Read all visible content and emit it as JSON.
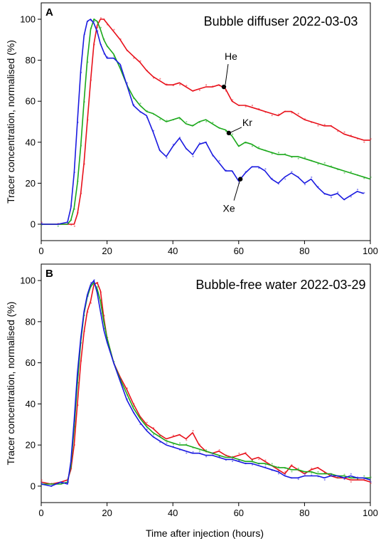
{
  "figure": {
    "xlabel": "Time after injection (hours)"
  },
  "chart_data": [
    {
      "type": "line",
      "panel_label": "A",
      "title": "Bubble diffuser 2022-03-03",
      "xlabel": "Time after injection (hours)",
      "ylabel": "Tracer concentration, normalised (%)",
      "xlim": [
        0,
        100
      ],
      "ylim": [
        -8,
        108
      ],
      "xticks": [
        0,
        20,
        40,
        60,
        80,
        100
      ],
      "yticks": [
        0,
        20,
        40,
        60,
        80,
        100
      ],
      "grid": false,
      "legend": "none",
      "series": [
        {
          "name": "He",
          "color": "#e8101a",
          "annotation_at": [
            55.5,
            67
          ],
          "x": [
            0,
            5,
            9,
            10,
            11,
            12,
            13,
            14,
            15,
            16,
            17,
            18,
            19,
            20,
            22,
            24,
            26,
            28,
            30,
            32,
            34,
            36,
            38,
            40,
            42,
            44,
            46,
            48,
            50,
            52,
            54,
            56,
            58,
            60,
            62,
            64,
            66,
            68,
            70,
            72,
            74,
            76,
            78,
            80,
            82,
            84,
            86,
            88,
            90,
            92,
            94,
            96,
            98,
            100
          ],
          "values": [
            0,
            0,
            0,
            0,
            5,
            15,
            30,
            50,
            70,
            88,
            97,
            100,
            100,
            98,
            94,
            90,
            85,
            82,
            79,
            75,
            72,
            70,
            68,
            68,
            69,
            67,
            65,
            66,
            67,
            67,
            68,
            66,
            60,
            58,
            58,
            57,
            56,
            55,
            54,
            53,
            55,
            55,
            53,
            51,
            50,
            49,
            48,
            48,
            46,
            44,
            43,
            42,
            41,
            41
          ]
        },
        {
          "name": "Kr",
          "color": "#1aa81a",
          "annotation_at": [
            57,
            44.5
          ],
          "x": [
            0,
            5,
            8,
            9,
            10,
            11,
            12,
            13,
            14,
            15,
            16,
            17,
            18,
            19,
            20,
            22,
            24,
            26,
            28,
            30,
            32,
            34,
            36,
            38,
            40,
            42,
            44,
            46,
            48,
            50,
            52,
            54,
            56,
            58,
            60,
            62,
            64,
            66,
            68,
            70,
            72,
            74,
            76,
            78,
            80,
            82,
            84,
            86,
            88,
            90,
            92,
            94,
            96,
            98,
            100
          ],
          "values": [
            0,
            0,
            0,
            2,
            8,
            20,
            38,
            60,
            80,
            95,
            100,
            99,
            95,
            90,
            87,
            83,
            76,
            68,
            62,
            58,
            55,
            54,
            52,
            50,
            51,
            52,
            49,
            48,
            50,
            51,
            49,
            47,
            46,
            43,
            38,
            40,
            39,
            37,
            36,
            35,
            34,
            34,
            33,
            33,
            32,
            31,
            30,
            29,
            28,
            27,
            26,
            25,
            24,
            23,
            22
          ]
        },
        {
          "name": "Xe",
          "color": "#1a1ae0",
          "annotation_at": [
            60.5,
            22
          ],
          "x": [
            0,
            5,
            8,
            9,
            10,
            11,
            12,
            13,
            14,
            15,
            16,
            17,
            18,
            19,
            20,
            22,
            24,
            26,
            28,
            30,
            32,
            34,
            36,
            38,
            40,
            42,
            44,
            46,
            48,
            50,
            52,
            54,
            56,
            58,
            60,
            62,
            64,
            66,
            68,
            70,
            72,
            74,
            76,
            78,
            80,
            82,
            84,
            86,
            88,
            90,
            92,
            94,
            96,
            98
          ],
          "values": [
            0,
            0,
            1,
            8,
            25,
            50,
            75,
            92,
            99,
            100,
            98,
            94,
            88,
            84,
            81,
            81,
            78,
            68,
            58,
            55,
            53,
            45,
            36,
            33,
            38,
            42,
            37,
            34,
            39,
            40,
            34,
            30,
            26,
            26,
            21,
            25,
            28,
            28,
            26,
            22,
            20,
            23,
            25,
            23,
            20,
            22,
            18,
            15,
            14,
            15,
            12,
            14,
            16,
            15
          ]
        }
      ]
    },
    {
      "type": "line",
      "panel_label": "B",
      "title": "Bubble-free water 2022-03-29",
      "xlabel": "Time after injection (hours)",
      "ylabel": "Tracer concentration, normalised (%)",
      "xlim": [
        0,
        100
      ],
      "ylim": [
        -8,
        108
      ],
      "xticks": [
        0,
        20,
        40,
        60,
        80,
        100
      ],
      "yticks": [
        0,
        20,
        40,
        60,
        80,
        100
      ],
      "grid": false,
      "legend": "none",
      "series": [
        {
          "color": "#e8101a",
          "x": [
            0,
            3,
            6,
            8,
            9,
            10,
            11,
            12,
            13,
            14,
            15,
            16,
            17,
            18,
            19,
            20,
            22,
            24,
            26,
            28,
            30,
            32,
            34,
            36,
            38,
            40,
            42,
            44,
            46,
            48,
            50,
            52,
            54,
            56,
            58,
            60,
            62,
            64,
            66,
            68,
            70,
            72,
            74,
            76,
            78,
            80,
            82,
            84,
            86,
            88,
            90,
            92,
            94,
            96,
            98,
            100
          ],
          "values": [
            2,
            1,
            2,
            3,
            8,
            20,
            40,
            60,
            75,
            85,
            90,
            98,
            99,
            95,
            82,
            72,
            60,
            53,
            47,
            40,
            34,
            30,
            28,
            25,
            23,
            24,
            25,
            23,
            26,
            20,
            17,
            16,
            17,
            15,
            14,
            15,
            16,
            13,
            14,
            12,
            10,
            8,
            6,
            10,
            8,
            6,
            8,
            9,
            7,
            5,
            4,
            4,
            3,
            3,
            3,
            2
          ]
        },
        {
          "color": "#1aa81a",
          "x": [
            0,
            3,
            6,
            8,
            9,
            10,
            11,
            12,
            13,
            14,
            15,
            16,
            17,
            18,
            19,
            20,
            22,
            24,
            26,
            28,
            30,
            32,
            34,
            36,
            38,
            40,
            42,
            44,
            46,
            48,
            50,
            52,
            54,
            56,
            58,
            60,
            62,
            64,
            66,
            68,
            70,
            72,
            74,
            76,
            78,
            80,
            82,
            84,
            86,
            88,
            90,
            92,
            94,
            96,
            98,
            100
          ],
          "values": [
            1,
            1,
            1,
            2,
            10,
            28,
            50,
            70,
            84,
            92,
            97,
            99,
            96,
            90,
            80,
            72,
            60,
            52,
            45,
            38,
            33,
            29,
            26,
            24,
            22,
            21,
            20,
            20,
            19,
            18,
            17,
            16,
            15,
            14,
            14,
            13,
            12,
            12,
            11,
            11,
            10,
            9,
            9,
            8,
            8,
            7,
            7,
            6,
            6,
            6,
            5,
            5,
            4,
            4,
            4,
            4
          ]
        },
        {
          "color": "#1a1ae0",
          "x": [
            0,
            3,
            6,
            8,
            9,
            10,
            11,
            12,
            13,
            14,
            15,
            16,
            17,
            18,
            19,
            20,
            22,
            24,
            26,
            28,
            30,
            32,
            34,
            36,
            38,
            40,
            42,
            44,
            46,
            48,
            50,
            52,
            54,
            56,
            58,
            60,
            62,
            64,
            66,
            68,
            70,
            72,
            74,
            76,
            78,
            80,
            82,
            84,
            86,
            88,
            90,
            92,
            94,
            96,
            98,
            100
          ],
          "values": [
            1,
            0,
            2,
            1,
            12,
            32,
            55,
            72,
            85,
            93,
            98,
            100,
            94,
            85,
            76,
            70,
            60,
            51,
            42,
            36,
            31,
            27,
            24,
            22,
            20,
            19,
            18,
            17,
            16,
            16,
            15,
            15,
            14,
            13,
            13,
            12,
            11,
            11,
            10,
            9,
            8,
            7,
            5,
            4,
            4,
            5,
            5,
            5,
            4,
            5,
            5,
            4,
            5,
            4,
            4,
            3
          ]
        }
      ]
    }
  ]
}
